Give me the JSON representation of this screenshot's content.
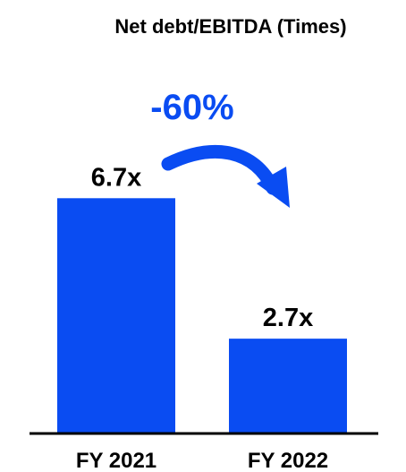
{
  "chart_data": {
    "type": "bar",
    "title": "Net debt/EBITDA (Times)",
    "categories": [
      "FY 2021",
      "FY 2022"
    ],
    "values": [
      6.7,
      2.7
    ],
    "value_labels": [
      "6.7x",
      "2.7x"
    ],
    "xlabel": "",
    "ylabel": "",
    "ylim": [
      0,
      7.6
    ],
    "grid": false,
    "legend": "none",
    "annotation": {
      "text": "-60%",
      "arrow": "curved arrow from first bar to second bar"
    },
    "colors": {
      "bar": "#0a4cf2",
      "annotation": "#0a4cf2",
      "axis": "#000000",
      "text": "#000000"
    }
  }
}
